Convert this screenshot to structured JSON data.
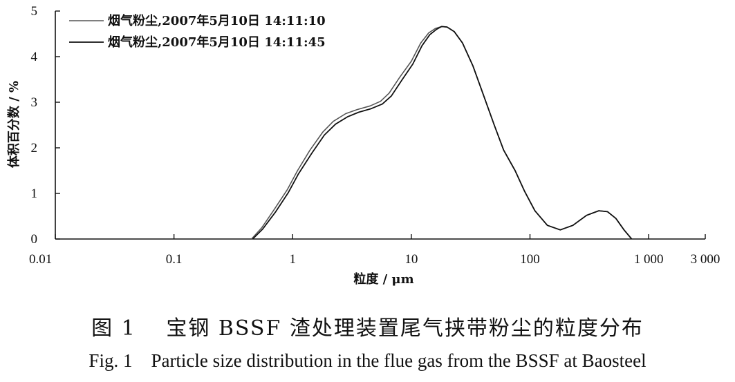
{
  "chart_data": {
    "type": "line",
    "xscale": "log",
    "xlim": [
      0.01,
      3000
    ],
    "ylim": [
      0,
      5
    ],
    "xlabel": "粒度 / μm",
    "ylabel": "体积百分数 / %",
    "x_ticks": [
      {
        "value": 0.01,
        "label": "0.01"
      },
      {
        "value": 0.1,
        "label": "0.1"
      },
      {
        "value": 1,
        "label": "1"
      },
      {
        "value": 10,
        "label": "10"
      },
      {
        "value": 100,
        "label": "100"
      },
      {
        "value": 1000,
        "label": "1 000"
      },
      {
        "value": 3000,
        "label": "3 000"
      }
    ],
    "y_ticks": [
      {
        "value": 0,
        "label": "0"
      },
      {
        "value": 1,
        "label": "1"
      },
      {
        "value": 2,
        "label": "2"
      },
      {
        "value": 3,
        "label": "3"
      },
      {
        "value": 4,
        "label": "4"
      },
      {
        "value": 5,
        "label": "5"
      }
    ],
    "legend_position": "top-left",
    "series": [
      {
        "name": "烟气粉尘,2007年5月10日 14:11:10",
        "color": "#555555",
        "points": [
          [
            0.45,
            0
          ],
          [
            0.55,
            0.25
          ],
          [
            0.7,
            0.65
          ],
          [
            0.9,
            1.08
          ],
          [
            1.1,
            1.5
          ],
          [
            1.4,
            1.95
          ],
          [
            1.8,
            2.35
          ],
          [
            2.2,
            2.58
          ],
          [
            2.8,
            2.75
          ],
          [
            3.5,
            2.84
          ],
          [
            4.5,
            2.92
          ],
          [
            5.5,
            3.02
          ],
          [
            6.5,
            3.2
          ],
          [
            8,
            3.55
          ],
          [
            10,
            3.9
          ],
          [
            12,
            4.3
          ],
          [
            14,
            4.52
          ],
          [
            16,
            4.62
          ],
          [
            18,
            4.66
          ],
          [
            20,
            4.65
          ],
          [
            23,
            4.55
          ],
          [
            27,
            4.3
          ],
          [
            33,
            3.8
          ],
          [
            40,
            3.2
          ],
          [
            50,
            2.5
          ],
          [
            60,
            1.95
          ],
          [
            75,
            1.5
          ],
          [
            90,
            1.05
          ],
          [
            110,
            0.62
          ],
          [
            140,
            0.3
          ],
          [
            180,
            0.2
          ],
          [
            230,
            0.3
          ],
          [
            300,
            0.52
          ],
          [
            380,
            0.62
          ],
          [
            450,
            0.6
          ],
          [
            530,
            0.45
          ],
          [
            620,
            0.2
          ],
          [
            720,
            0
          ]
        ]
      },
      {
        "name": "烟气粉尘,2007年5月10日 14:11:45",
        "color": "#111111",
        "points": [
          [
            0.46,
            0
          ],
          [
            0.56,
            0.22
          ],
          [
            0.72,
            0.6
          ],
          [
            0.92,
            1.02
          ],
          [
            1.12,
            1.43
          ],
          [
            1.45,
            1.88
          ],
          [
            1.85,
            2.28
          ],
          [
            2.3,
            2.52
          ],
          [
            2.9,
            2.68
          ],
          [
            3.6,
            2.78
          ],
          [
            4.6,
            2.86
          ],
          [
            5.7,
            2.96
          ],
          [
            6.8,
            3.14
          ],
          [
            8.3,
            3.48
          ],
          [
            10.3,
            3.84
          ],
          [
            12.3,
            4.24
          ],
          [
            14.3,
            4.48
          ],
          [
            16.3,
            4.6
          ],
          [
            18,
            4.66
          ],
          [
            20,
            4.65
          ],
          [
            23,
            4.55
          ],
          [
            27,
            4.3
          ],
          [
            33,
            3.8
          ],
          [
            40,
            3.2
          ],
          [
            50,
            2.5
          ],
          [
            60,
            1.95
          ],
          [
            75,
            1.5
          ],
          [
            90,
            1.05
          ],
          [
            110,
            0.62
          ],
          [
            140,
            0.3
          ],
          [
            180,
            0.2
          ],
          [
            230,
            0.3
          ],
          [
            300,
            0.52
          ],
          [
            380,
            0.62
          ],
          [
            450,
            0.6
          ],
          [
            530,
            0.45
          ],
          [
            620,
            0.2
          ],
          [
            720,
            0
          ]
        ]
      }
    ]
  },
  "caption": {
    "chinese": "图 1　 宝钢 BSSF 渣处理装置尾气挟带粉尘的粒度分布",
    "english": "Fig. 1　Particle size distribution in the flue gas from the BSSF at Baosteel"
  }
}
